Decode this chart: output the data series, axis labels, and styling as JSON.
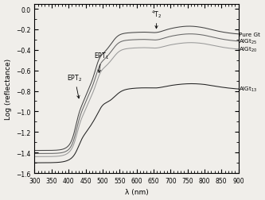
{
  "xlim": [
    300,
    900
  ],
  "ylim": [
    -1.6,
    0.05
  ],
  "xlabel": "λ (nm)",
  "ylabel": "Log (reflectance)",
  "yticks": [
    0.0,
    -0.2,
    -0.4,
    -0.6,
    -0.8,
    -1.0,
    -1.2,
    -1.4,
    -1.6
  ],
  "xticks": [
    300,
    350,
    400,
    450,
    500,
    550,
    600,
    650,
    700,
    750,
    800,
    850,
    900
  ],
  "legend_labels": [
    "Pure Gt",
    "AlGt$_{25}$",
    "AlGt$_{20}$",
    "AlGt$_{13}$"
  ],
  "line_colors": [
    "#444444",
    "#666666",
    "#999999",
    "#222222"
  ],
  "background_color": "#f0eeea",
  "figsize": [
    3.33,
    2.53
  ],
  "dpi": 100
}
